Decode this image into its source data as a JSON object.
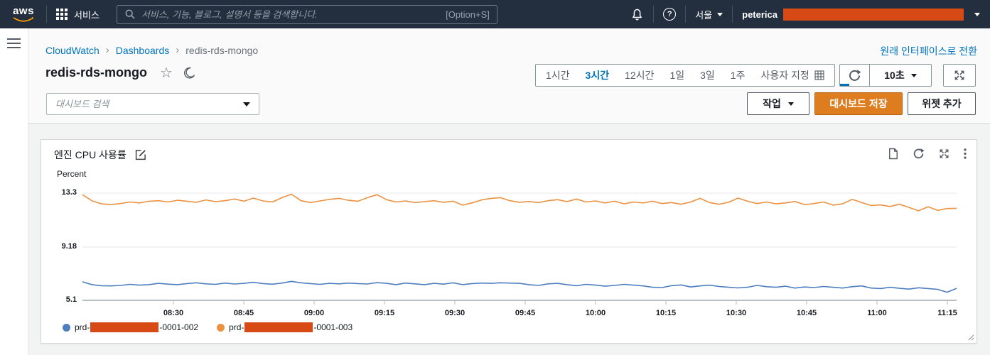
{
  "topbar": {
    "logo": "aws",
    "services_label": "서비스",
    "search_placeholder": "서비스, 기능, 블로그, 설명서 등을 검색합니다.",
    "search_shortcut": "[Option+S]",
    "region": "서울",
    "username": "peterica",
    "redaction_color": "#d84a15"
  },
  "breadcrumb": {
    "items": [
      "CloudWatch",
      "Dashboards",
      "redis-rds-mongo"
    ]
  },
  "header": {
    "title": "redis-rds-mongo",
    "switch_link": "원래 인터페이스로 전환",
    "dashboard_search_placeholder": "대시보드 검색",
    "actions_button": "작업",
    "save_button": "대시보드 저장",
    "add_widget_button": "위젯 추가"
  },
  "time_controls": {
    "ranges": [
      {
        "label": "1시간",
        "selected": false
      },
      {
        "label": "3시간",
        "selected": true
      },
      {
        "label": "12시간",
        "selected": false
      },
      {
        "label": "1일",
        "selected": false
      },
      {
        "label": "3일",
        "selected": false
      },
      {
        "label": "1주",
        "selected": false
      },
      {
        "label": "사용자 지정",
        "selected": false,
        "has_icon": true
      }
    ],
    "refresh_interval": "10초"
  },
  "widget": {
    "title": "엔진 CPU 사용률",
    "unit_label": "Percent"
  },
  "chart_data": {
    "type": "line",
    "title": "엔진 CPU 사용률",
    "xlabel": "",
    "ylabel": "Percent",
    "ylim": [
      5.1,
      13.3
    ],
    "y_ticks": [
      13.3,
      9.18,
      5.1
    ],
    "x_ticks": [
      "08:30",
      "08:45",
      "09:00",
      "09:15",
      "09:30",
      "09:45",
      "10:00",
      "10:15",
      "10:30",
      "10:45",
      "11:00",
      "11:15"
    ],
    "grid": true,
    "legend_position": "bottom",
    "series": [
      {
        "name_prefix": "prd-",
        "name_suffix": "-0001-002",
        "redacted": true,
        "color": "#4d7ebf",
        "values": [
          6.52,
          6.3,
          6.22,
          6.2,
          6.24,
          6.32,
          6.26,
          6.3,
          6.4,
          6.34,
          6.3,
          6.38,
          6.44,
          6.36,
          6.32,
          6.42,
          6.35,
          6.4,
          6.48,
          6.38,
          6.33,
          6.42,
          6.55,
          6.44,
          6.38,
          6.32,
          6.4,
          6.36,
          6.42,
          6.38,
          6.35,
          6.45,
          6.4,
          6.3,
          6.42,
          6.36,
          6.3,
          6.4,
          6.34,
          6.44,
          6.3,
          6.38,
          6.42,
          6.4,
          6.44,
          6.42,
          6.4,
          6.3,
          6.24,
          6.36,
          6.4,
          6.3,
          6.22,
          6.32,
          6.26,
          6.18,
          6.24,
          6.32,
          6.26,
          6.2,
          6.1,
          6.08,
          6.22,
          6.28,
          6.12,
          6.2,
          6.26,
          6.16,
          6.1,
          6.05,
          6.1,
          6.24,
          6.14,
          6.1,
          6.18,
          6.04,
          6.12,
          6.08,
          6.16,
          6.1,
          6.04,
          6.14,
          6.2,
          6.04,
          6.0,
          6.1,
          6.02,
          5.96,
          6.06,
          6.0,
          5.94,
          5.72,
          6.02
        ]
      },
      {
        "name_prefix": "prd-",
        "name_suffix": "-0001-003",
        "redacted": true,
        "color": "#ec9140",
        "values": [
          13.18,
          12.72,
          12.48,
          12.42,
          12.5,
          12.62,
          12.55,
          12.68,
          12.72,
          12.62,
          12.75,
          12.68,
          12.6,
          12.78,
          12.65,
          12.72,
          12.85,
          12.68,
          12.92,
          12.7,
          12.62,
          12.95,
          13.22,
          12.72,
          12.58,
          12.7,
          12.82,
          12.9,
          12.75,
          12.68,
          12.95,
          13.18,
          12.8,
          12.62,
          12.7,
          12.58,
          12.65,
          12.72,
          12.6,
          12.68,
          12.38,
          12.55,
          12.78,
          12.9,
          12.95,
          12.72,
          12.6,
          12.66,
          12.58,
          12.72,
          12.8,
          12.65,
          12.85,
          12.62,
          12.7,
          12.55,
          12.68,
          12.48,
          12.62,
          12.55,
          12.68,
          12.5,
          12.58,
          12.45,
          12.62,
          12.9,
          12.58,
          12.45,
          12.6,
          12.92,
          12.68,
          12.5,
          12.62,
          12.48,
          12.55,
          12.66,
          12.42,
          12.5,
          12.62,
          12.38,
          12.48,
          12.82,
          12.58,
          12.35,
          12.4,
          12.28,
          12.45,
          12.2,
          11.95,
          12.25,
          11.98,
          12.12,
          12.14
        ]
      }
    ]
  }
}
